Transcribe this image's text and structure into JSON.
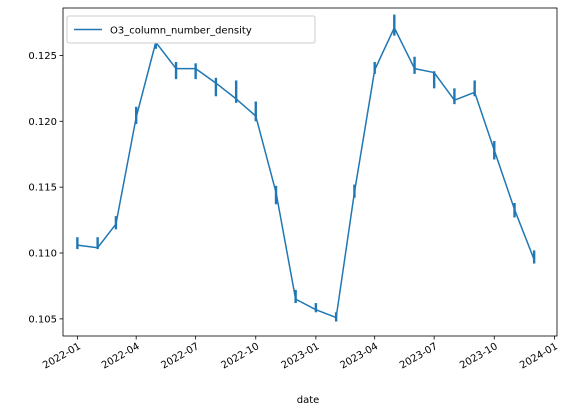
{
  "chart_data": {
    "type": "line",
    "xlabel": "date",
    "ylabel": "",
    "x_axis_type": "date",
    "xlim": [
      "2021-12-10",
      "2024-01-05"
    ],
    "ylim": [
      0.1037,
      0.1286
    ],
    "x_ticks": [
      {
        "date": "2022-01-01",
        "label": "2022-01"
      },
      {
        "date": "2022-04-01",
        "label": "2022-04"
      },
      {
        "date": "2022-07-01",
        "label": "2022-07"
      },
      {
        "date": "2022-10-01",
        "label": "2022-10"
      },
      {
        "date": "2023-01-01",
        "label": "2023-01"
      },
      {
        "date": "2023-04-01",
        "label": "2023-04"
      },
      {
        "date": "2023-07-01",
        "label": "2023-07"
      },
      {
        "date": "2023-10-01",
        "label": "2023-10"
      },
      {
        "date": "2024-01-01",
        "label": "2024-01"
      }
    ],
    "y_ticks": [
      0.105,
      0.11,
      0.115,
      0.12,
      0.125
    ],
    "y_tick_labels": [
      "0.105",
      "0.110",
      "0.115",
      "0.120",
      "0.125"
    ],
    "grid": false,
    "legend_position": "upper-left",
    "series": [
      {
        "name": "O3_column_number_density",
        "color": "#1f77b4",
        "points": [
          {
            "date": "2022-01-01",
            "value": 0.1106,
            "err_low": 0.1103,
            "err_high": 0.1112
          },
          {
            "date": "2022-02-01",
            "value": 0.1104,
            "err_low": 0.1103,
            "err_high": 0.1112
          },
          {
            "date": "2022-03-01",
            "value": 0.1122,
            "err_low": 0.1118,
            "err_high": 0.1128
          },
          {
            "date": "2022-04-01",
            "value": 0.1203,
            "err_low": 0.1198,
            "err_high": 0.1211
          },
          {
            "date": "2022-05-01",
            "value": 0.126,
            "err_low": 0.1255,
            "err_high": 0.1267
          },
          {
            "date": "2022-06-01",
            "value": 0.124,
            "err_low": 0.1232,
            "err_high": 0.1245
          },
          {
            "date": "2022-07-01",
            "value": 0.124,
            "err_low": 0.1232,
            "err_high": 0.1244
          },
          {
            "date": "2022-08-01",
            "value": 0.1229,
            "err_low": 0.1219,
            "err_high": 0.1233
          },
          {
            "date": "2022-09-01",
            "value": 0.1217,
            "err_low": 0.1214,
            "err_high": 0.1231
          },
          {
            "date": "2022-10-01",
            "value": 0.1204,
            "err_low": 0.12,
            "err_high": 0.1215
          },
          {
            "date": "2022-11-01",
            "value": 0.1146,
            "err_low": 0.1137,
            "err_high": 0.1151
          },
          {
            "date": "2022-12-01",
            "value": 0.1065,
            "err_low": 0.1062,
            "err_high": 0.1072
          },
          {
            "date": "2023-01-01",
            "value": 0.1057,
            "err_low": 0.1055,
            "err_high": 0.1062
          },
          {
            "date": "2023-02-01",
            "value": 0.1051,
            "err_low": 0.1048,
            "err_high": 0.1055
          },
          {
            "date": "2023-03-01",
            "value": 0.1146,
            "err_low": 0.1142,
            "err_high": 0.1152
          },
          {
            "date": "2023-04-01",
            "value": 0.1239,
            "err_low": 0.1236,
            "err_high": 0.1245
          },
          {
            "date": "2023-05-01",
            "value": 0.1271,
            "err_low": 0.1265,
            "err_high": 0.1281
          },
          {
            "date": "2023-06-01",
            "value": 0.124,
            "err_low": 0.1236,
            "err_high": 0.1249
          },
          {
            "date": "2023-07-01",
            "value": 0.1237,
            "err_low": 0.1225,
            "err_high": 0.1238
          },
          {
            "date": "2023-08-01",
            "value": 0.1216,
            "err_low": 0.1213,
            "err_high": 0.1225
          },
          {
            "date": "2023-09-01",
            "value": 0.1222,
            "err_low": 0.1219,
            "err_high": 0.1231
          },
          {
            "date": "2023-10-01",
            "value": 0.1178,
            "err_low": 0.1171,
            "err_high": 0.1185
          },
          {
            "date": "2023-11-01",
            "value": 0.1133,
            "err_low": 0.1127,
            "err_high": 0.1138
          },
          {
            "date": "2023-12-01",
            "value": 0.1095,
            "err_low": 0.1092,
            "err_high": 0.1102
          }
        ]
      }
    ]
  }
}
